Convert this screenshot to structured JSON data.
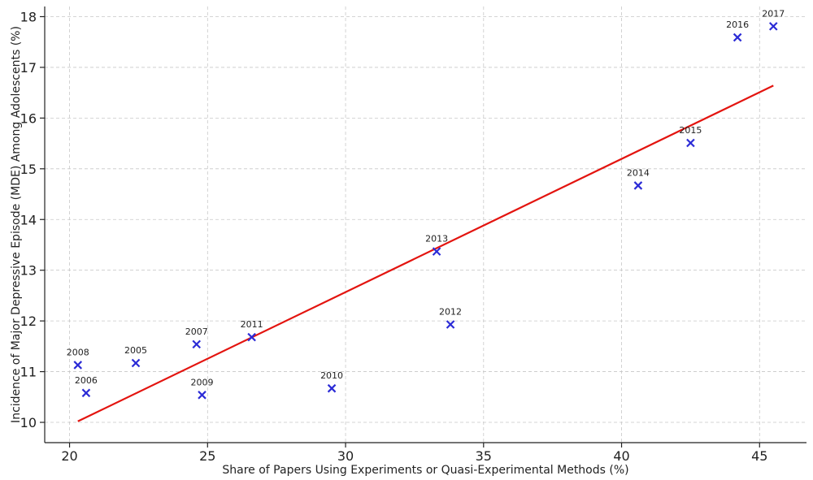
{
  "chart_data": {
    "type": "scatter",
    "title": "",
    "xlabel": "Share of Papers Using Experiments or Quasi-Experimental Methods (%)",
    "ylabel": "Incidence of Major Depressive Episode (MDE) Among Adolescents (%)",
    "xlim": [
      19.1,
      46.7
    ],
    "ylim": [
      9.6,
      18.2
    ],
    "xticks": [
      20,
      25,
      30,
      35,
      40,
      45
    ],
    "yticks": [
      10,
      11,
      12,
      13,
      14,
      15,
      16,
      17,
      18
    ],
    "grid": true,
    "marker_color": "#2b2bd6",
    "line_color": "#e3140f",
    "points": [
      {
        "label": "2005",
        "x": 22.4,
        "y": 11.17
      },
      {
        "label": "2006",
        "x": 20.6,
        "y": 10.58
      },
      {
        "label": "2007",
        "x": 24.6,
        "y": 11.54
      },
      {
        "label": "2008",
        "x": 20.3,
        "y": 11.13
      },
      {
        "label": "2009",
        "x": 24.8,
        "y": 10.54
      },
      {
        "label": "2010",
        "x": 29.5,
        "y": 10.67
      },
      {
        "label": "2011",
        "x": 26.6,
        "y": 11.68
      },
      {
        "label": "2012",
        "x": 33.8,
        "y": 11.93
      },
      {
        "label": "2013",
        "x": 33.3,
        "y": 13.37
      },
      {
        "label": "2014",
        "x": 40.6,
        "y": 14.67
      },
      {
        "label": "2015",
        "x": 42.5,
        "y": 15.51
      },
      {
        "label": "2016",
        "x": 44.2,
        "y": 17.59
      },
      {
        "label": "2017",
        "x": 45.5,
        "y": 17.81
      }
    ],
    "trendline": {
      "x": [
        20.3,
        45.5
      ],
      "y": [
        10.02,
        16.64
      ]
    }
  }
}
